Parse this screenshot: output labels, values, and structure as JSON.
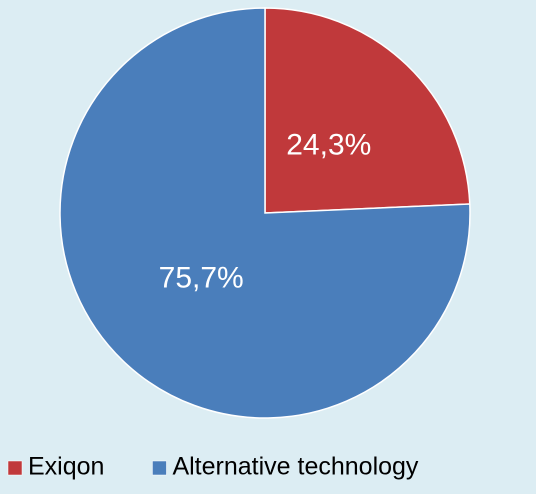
{
  "chart_data": {
    "type": "pie",
    "categories": [
      "Exiqon",
      "Alternative technology"
    ],
    "values": [
      24.3,
      75.7
    ],
    "value_labels": [
      "24,3%",
      "75,7%"
    ],
    "colors": [
      "#c0393b",
      "#4a7ebb"
    ],
    "legend": "bottom"
  }
}
